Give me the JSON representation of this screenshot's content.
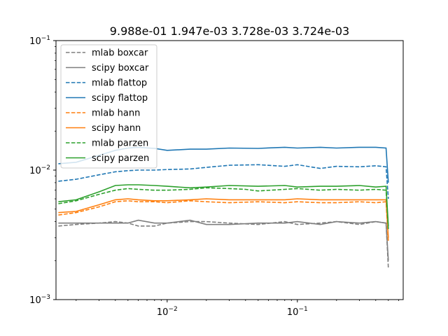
{
  "chart_data": {
    "type": "line",
    "title": "9.988e-01 1.947e-03 3.728e-03 3.724e-03",
    "xlabel": "",
    "ylabel": "",
    "xscale": "log",
    "yscale": "log",
    "xlim": [
      0.0014,
      0.65
    ],
    "ylim": [
      0.001,
      0.1
    ],
    "grid": false,
    "legend_position": "top-left",
    "x_ticks": [
      {
        "value": 0.01,
        "base": "10",
        "exp": "−2"
      },
      {
        "value": 0.1,
        "base": "10",
        "exp": "−1"
      }
    ],
    "y_ticks": [
      {
        "value": 0.001,
        "base": "10",
        "exp": "−3"
      },
      {
        "value": 0.01,
        "base": "10",
        "exp": "−2"
      },
      {
        "value": 0.1,
        "base": "10",
        "exp": "−1"
      }
    ],
    "series": [
      {
        "name": "mlab boxcar",
        "color": "#7f7f7f",
        "style": "dashed",
        "x": [
          0.00146,
          0.002,
          0.003,
          0.004,
          0.005,
          0.006,
          0.008,
          0.01,
          0.015,
          0.02,
          0.03,
          0.05,
          0.08,
          0.1,
          0.15,
          0.2,
          0.3,
          0.4,
          0.48,
          0.5
        ],
        "y": [
          0.0037,
          0.0038,
          0.0039,
          0.004,
          0.0039,
          0.0037,
          0.0037,
          0.0039,
          0.004,
          0.004,
          0.0039,
          0.0038,
          0.004,
          0.0038,
          0.0039,
          0.004,
          0.0038,
          0.004,
          0.0039,
          0.00175
        ]
      },
      {
        "name": "scipy boxcar",
        "color": "#7f7f7f",
        "style": "solid",
        "x": [
          0.00146,
          0.002,
          0.003,
          0.004,
          0.005,
          0.006,
          0.008,
          0.01,
          0.015,
          0.02,
          0.03,
          0.05,
          0.08,
          0.1,
          0.15,
          0.2,
          0.3,
          0.4,
          0.48,
          0.5
        ],
        "y": [
          0.0039,
          0.0039,
          0.0039,
          0.0039,
          0.0039,
          0.0041,
          0.0039,
          0.0039,
          0.0041,
          0.0038,
          0.0038,
          0.0039,
          0.0039,
          0.004,
          0.0038,
          0.004,
          0.0039,
          0.004,
          0.0039,
          0.002
        ]
      },
      {
        "name": "mlab flattop",
        "color": "#1f77b4",
        "style": "dashed",
        "x": [
          0.00146,
          0.002,
          0.003,
          0.004,
          0.005,
          0.006,
          0.008,
          0.01,
          0.015,
          0.02,
          0.03,
          0.05,
          0.08,
          0.1,
          0.15,
          0.2,
          0.3,
          0.4,
          0.48,
          0.5
        ],
        "y": [
          0.0082,
          0.0085,
          0.0092,
          0.0097,
          0.0099,
          0.01,
          0.01,
          0.0101,
          0.0102,
          0.0105,
          0.0109,
          0.011,
          0.0107,
          0.011,
          0.0103,
          0.0107,
          0.0106,
          0.0108,
          0.0106,
          0.006
        ]
      },
      {
        "name": "scipy flattop",
        "color": "#1f77b4",
        "style": "solid",
        "x": [
          0.00146,
          0.002,
          0.003,
          0.004,
          0.005,
          0.006,
          0.008,
          0.01,
          0.015,
          0.02,
          0.03,
          0.05,
          0.08,
          0.1,
          0.15,
          0.2,
          0.3,
          0.4,
          0.48,
          0.5
        ],
        "y": [
          0.0112,
          0.0115,
          0.013,
          0.0142,
          0.0148,
          0.015,
          0.0147,
          0.0142,
          0.0145,
          0.0145,
          0.0148,
          0.0147,
          0.015,
          0.0148,
          0.015,
          0.0148,
          0.015,
          0.015,
          0.0148,
          0.008
        ]
      },
      {
        "name": "mlab hann",
        "color": "#ff7f0e",
        "style": "dashed",
        "x": [
          0.00146,
          0.002,
          0.003,
          0.004,
          0.005,
          0.006,
          0.008,
          0.01,
          0.015,
          0.02,
          0.03,
          0.05,
          0.08,
          0.1,
          0.15,
          0.2,
          0.3,
          0.4,
          0.48,
          0.5
        ],
        "y": [
          0.0045,
          0.0047,
          0.0052,
          0.0057,
          0.0058,
          0.0057,
          0.0057,
          0.0056,
          0.0058,
          0.0057,
          0.0056,
          0.0057,
          0.0056,
          0.0057,
          0.0056,
          0.0056,
          0.0057,
          0.0056,
          0.0057,
          0.0028
        ]
      },
      {
        "name": "scipy hann",
        "color": "#ff7f0e",
        "style": "solid",
        "x": [
          0.00146,
          0.002,
          0.003,
          0.004,
          0.005,
          0.006,
          0.008,
          0.01,
          0.015,
          0.02,
          0.03,
          0.05,
          0.08,
          0.1,
          0.15,
          0.2,
          0.3,
          0.4,
          0.48,
          0.5
        ],
        "y": [
          0.0047,
          0.0048,
          0.0054,
          0.0059,
          0.006,
          0.0059,
          0.0058,
          0.0058,
          0.0059,
          0.006,
          0.0059,
          0.0059,
          0.0059,
          0.006,
          0.0059,
          0.0059,
          0.0059,
          0.0059,
          0.0059,
          0.003
        ]
      },
      {
        "name": "mlab parzen",
        "color": "#2ca02c",
        "style": "dashed",
        "x": [
          0.00146,
          0.002,
          0.003,
          0.004,
          0.005,
          0.006,
          0.008,
          0.01,
          0.015,
          0.02,
          0.03,
          0.04,
          0.05,
          0.08,
          0.1,
          0.15,
          0.2,
          0.3,
          0.4,
          0.48,
          0.5
        ],
        "y": [
          0.0055,
          0.0058,
          0.0065,
          0.007,
          0.0072,
          0.0071,
          0.007,
          0.007,
          0.0071,
          0.0073,
          0.0072,
          0.0071,
          0.0069,
          0.0071,
          0.0072,
          0.007,
          0.0071,
          0.007,
          0.0071,
          0.007,
          0.0035
        ]
      },
      {
        "name": "scipy parzen",
        "color": "#2ca02c",
        "style": "solid",
        "x": [
          0.00146,
          0.002,
          0.003,
          0.004,
          0.005,
          0.006,
          0.008,
          0.01,
          0.015,
          0.02,
          0.03,
          0.05,
          0.08,
          0.1,
          0.15,
          0.2,
          0.3,
          0.4,
          0.48,
          0.5
        ],
        "y": [
          0.0057,
          0.0059,
          0.0068,
          0.0076,
          0.0077,
          0.0077,
          0.0076,
          0.0075,
          0.0073,
          0.0074,
          0.0076,
          0.0075,
          0.0076,
          0.0074,
          0.0075,
          0.0075,
          0.0076,
          0.0074,
          0.0075,
          0.0037
        ]
      }
    ]
  }
}
